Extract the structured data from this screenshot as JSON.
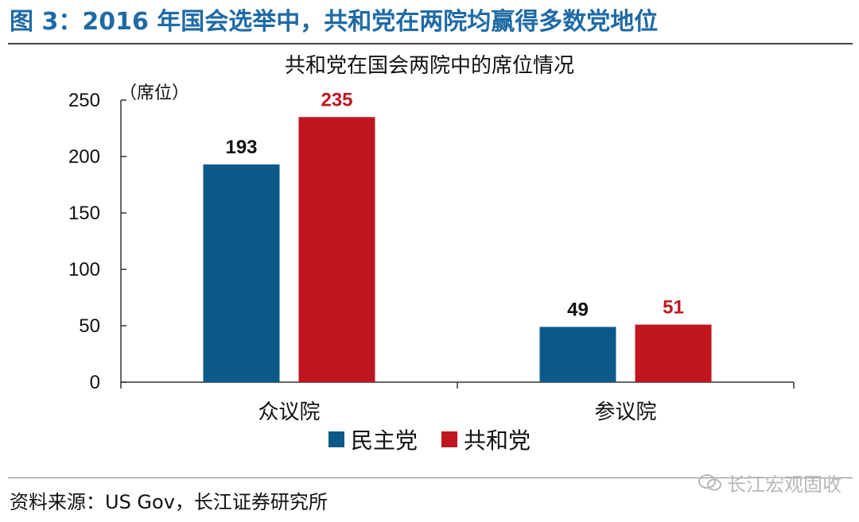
{
  "figure_title": "图 3：2016 年国会选举中，共和党在两院均赢得多数党地位",
  "source_text": "资料来源：US Gov，长江证券研究所",
  "watermark_text": "长江宏观固收",
  "chart_data": {
    "type": "bar",
    "title": "共和党在国会两院中的席位情况",
    "ylabel": "（席位）",
    "xlabel": "",
    "categories": [
      "众议院",
      "参议院"
    ],
    "series": [
      {
        "name": "民主党",
        "color": "#0b5a8a",
        "label_color": "#111111",
        "values": [
          193,
          49
        ]
      },
      {
        "name": "共和党",
        "color": "#c0161f",
        "label_color": "#c0161f",
        "values": [
          235,
          51
        ]
      }
    ],
    "ylim": [
      0,
      250
    ],
    "yticks": [
      0,
      50,
      100,
      150,
      200,
      250
    ],
    "grid": false,
    "legend_position": "bottom"
  }
}
